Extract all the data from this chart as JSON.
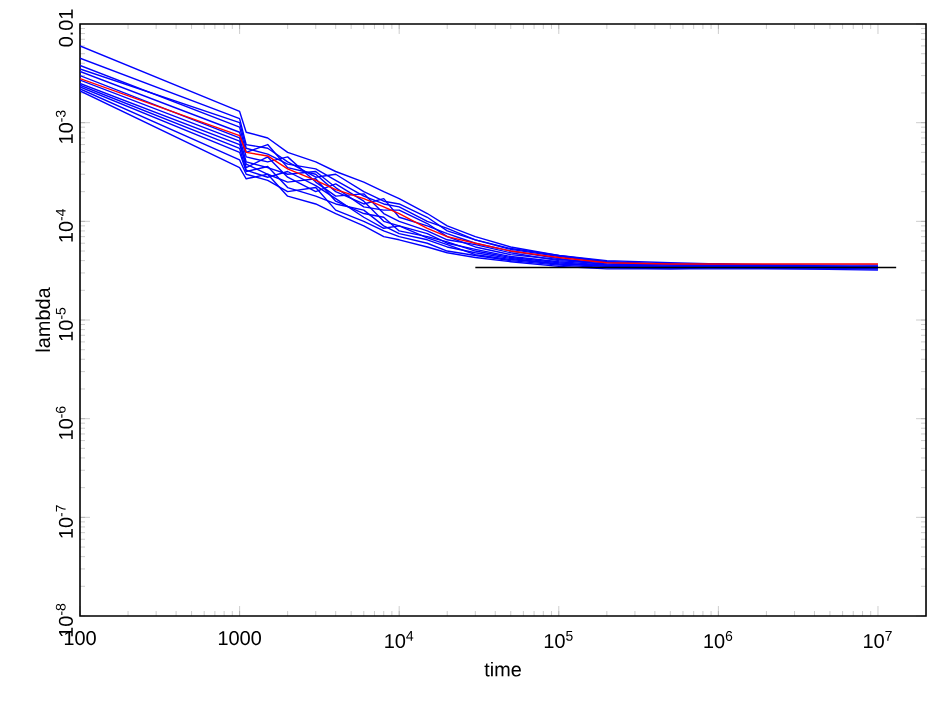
{
  "chart_data": {
    "type": "line",
    "xlabel": "time",
    "ylabel": "lambda",
    "log": "xy",
    "marker": "none",
    "line_style": "solid",
    "xlim": [
      100,
      20000000
    ],
    "ylim": [
      1e-08,
      0.01
    ],
    "xticks": [
      100,
      1000,
      {
        "value": 10000,
        "label": "10$^{4}$"
      },
      {
        "value": 100000,
        "label": "10$^{5}$"
      },
      {
        "value": 1000000,
        "label": "10$^{6}$"
      },
      {
        "value": 10000000,
        "label": "10$^{7}$"
      }
    ],
    "yticks": [
      {
        "value": 1e-08,
        "label": "10$^{-8}$"
      },
      {
        "value": 1e-07,
        "label": "10$^{-7}$"
      },
      {
        "value": 1e-06,
        "label": "10$^{-6}$"
      },
      {
        "value": 1e-05,
        "label": "10$^{-5}$"
      },
      {
        "value": 0.0001,
        "label": "10$^{-4}$"
      },
      {
        "value": 0.001,
        "label": "10$^{-3}$"
      },
      0.01
    ],
    "x": [
      100,
      1000,
      1100,
      1500,
      2000,
      3000,
      4000,
      6000,
      8000,
      10000,
      15000,
      20000,
      30000,
      50000,
      100000,
      200000,
      500000,
      1000000,
      3000000,
      10000000
    ],
    "series": [
      {
        "color": "#0000ff",
        "values": [
          0.006,
          0.0013,
          0.0008,
          0.0007,
          0.0005,
          0.0004,
          0.00032,
          0.00025,
          0.0002,
          0.00017,
          0.00012,
          9e-05,
          7e-05,
          5.5e-05,
          4.5e-05,
          4e-05,
          3.8e-05,
          3.7e-05,
          3.6e-05,
          3.6e-05
        ]
      },
      {
        "color": "#0000ff",
        "values": [
          0.0045,
          0.0011,
          0.0006,
          0.00055,
          0.0004,
          0.00028,
          0.0003,
          0.0002,
          0.00016,
          0.00015,
          0.00011,
          8e-05,
          6.5e-05,
          5.2e-05,
          4.4e-05,
          3.9e-05,
          3.7e-05,
          3.6e-05,
          3.5e-05,
          3.5e-05
        ]
      },
      {
        "color": "#0000ff",
        "values": [
          0.0038,
          0.0009,
          0.0005,
          0.0006,
          0.00035,
          0.0003,
          0.0002,
          0.00015,
          0.00017,
          0.00011,
          9e-05,
          7.5e-05,
          6e-05,
          5e-05,
          4.2e-05,
          3.6e-05,
          3.7e-05,
          3.5e-05,
          3.5e-05,
          3.4e-05
        ]
      },
      {
        "color": "#0000ff",
        "values": [
          0.0033,
          0.0008,
          0.00045,
          0.0004,
          0.00045,
          0.00025,
          0.00018,
          0.00019,
          0.00012,
          0.0001,
          8e-05,
          6.5e-05,
          5.8e-05,
          4.8e-05,
          4e-05,
          3.7e-05,
          3.5e-05,
          3.6e-05,
          3.4e-05,
          3.5e-05
        ]
      },
      {
        "color": "#0000ff",
        "values": [
          0.003,
          0.0007,
          0.0004,
          0.00035,
          0.0003,
          0.00032,
          0.00022,
          0.00014,
          0.00013,
          0.00013,
          9.5e-05,
          7e-05,
          5.5e-05,
          4.6e-05,
          4.1e-05,
          3.8e-05,
          3.6e-05,
          3.5e-05,
          3.6e-05,
          3.4e-05
        ]
      },
      {
        "color": "#0000ff",
        "values": [
          0.0027,
          0.00065,
          0.00035,
          0.00045,
          0.00028,
          0.0002,
          0.00024,
          0.00016,
          0.0001,
          9e-05,
          7.5e-05,
          6e-05,
          5.2e-05,
          4.4e-05,
          3.9e-05,
          3.6e-05,
          3.5e-05,
          3.5e-05,
          3.4e-05,
          3.4e-05
        ]
      },
      {
        "color": "#0000ff",
        "values": [
          0.0025,
          0.0006,
          0.00038,
          0.0003,
          0.00025,
          0.00027,
          0.00016,
          0.00012,
          0.00011,
          8e-05,
          7e-05,
          6.2e-05,
          5e-05,
          4.3e-05,
          3.8e-05,
          3.5e-05,
          3.4e-05,
          3.5e-05,
          3.5e-05,
          3.4e-05
        ]
      },
      {
        "color": "#0000ff",
        "values": [
          0.0023,
          0.0005,
          0.00032,
          0.00036,
          0.00022,
          0.00018,
          0.00015,
          0.00013,
          9e-05,
          7.5e-05,
          6.5e-05,
          5.5e-05,
          4.8e-05,
          4.2e-05,
          3.7e-05,
          3.5e-05,
          3.4e-05,
          3.4e-05,
          3.4e-05,
          3.3e-05
        ]
      },
      {
        "color": "#0000ff",
        "values": [
          0.0022,
          0.00042,
          0.0003,
          0.00026,
          0.0002,
          0.00022,
          0.00013,
          0.0001,
          8e-05,
          7e-05,
          6e-05,
          5e-05,
          4.5e-05,
          4e-05,
          3.6e-05,
          3.4e-05,
          3.3e-05,
          3.4e-05,
          3.3e-05,
          3.3e-05
        ]
      },
      {
        "color": "#0000ff",
        "values": [
          0.0021,
          0.00035,
          0.00027,
          0.0003,
          0.00018,
          0.00015,
          0.00012,
          9e-05,
          7e-05,
          6.5e-05,
          5.5e-05,
          4.8e-05,
          4.3e-05,
          3.9e-05,
          3.5e-05,
          3.3e-05,
          3.3e-05,
          3.3e-05,
          3.3e-05,
          3.2e-05
        ]
      },
      {
        "color": "#0000ff",
        "values": [
          0.0035,
          0.001,
          0.00055,
          0.00048,
          0.00038,
          0.00034,
          0.00026,
          0.00018,
          0.00015,
          0.00014,
          0.0001,
          8.5e-05,
          6.5e-05,
          5.3e-05,
          4.5e-05,
          3.9e-05,
          3.6e-05,
          3.7e-05,
          3.5e-05,
          3.5e-05
        ]
      },
      {
        "color": "#0000ff",
        "values": [
          0.0024,
          0.00055,
          0.00033,
          0.00028,
          0.00032,
          0.00023,
          0.00017,
          0.00011,
          8.5e-05,
          9e-05,
          6.8e-05,
          5.8e-05,
          4.6e-05,
          4.1e-05,
          3.7e-05,
          3.6e-05,
          3.5e-05,
          3.4e-05,
          3.4e-05,
          3.4e-05
        ]
      },
      {
        "color": "#000000",
        "x": [
          30000,
          13000000
        ],
        "values": [
          3.4e-05,
          3.4e-05
        ]
      },
      {
        "color": "#ff0000",
        "values": [
          0.0028,
          0.00074,
          0.0005,
          0.00046,
          0.00034,
          0.00026,
          0.00021,
          0.00017,
          0.00014,
          0.00012,
          8.5e-05,
          7e-05,
          6e-05,
          5e-05,
          4.3e-05,
          3.8e-05,
          3.7e-05,
          3.7e-05,
          3.7e-05,
          3.7e-05
        ]
      }
    ]
  }
}
